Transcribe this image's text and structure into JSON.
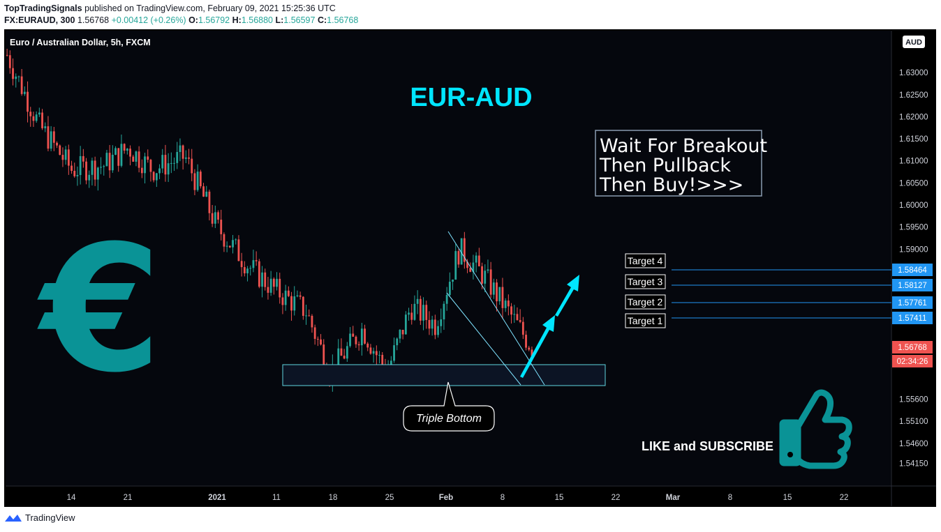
{
  "header": {
    "publisher": "TopTradingSignals",
    "published_text": " published on TradingView.com, February 09, 2021 15:25:36 UTC",
    "symbol": "FX:EURAUD, 300",
    "last": " 1.56768",
    "change": " +0.00412 (+0.26%)",
    "o_label": " O:",
    "o_val": "1.56792",
    "h_label": " H:",
    "h_val": "1.56880",
    "l_label": " L:",
    "l_val": "1.56597",
    "c_label": " C:",
    "c_val": "1.56768"
  },
  "chart": {
    "instrument_title": "Euro / Australian Dollar, 5h, FXCM",
    "currency": "AUD",
    "price_badge": "1.56768",
    "countdown": "02:34:26",
    "headline": "EUR-AUD",
    "note_lines": [
      "Wait For Breakout",
      "Then Pullback",
      "Then Buy!>>>"
    ],
    "triple_bottom_label": "Triple Bottom",
    "cta": "LIKE and SUBSCRIBE",
    "euro_symbol": "€",
    "targets": [
      {
        "label": "Target 4",
        "price": "1.58464"
      },
      {
        "label": "Target 3",
        "price": "1.58127"
      },
      {
        "label": "Target 2",
        "price": "1.57761"
      },
      {
        "label": "Target 1",
        "price": "1.57411"
      }
    ],
    "colors": {
      "bg": "#000000",
      "up": "#26a69a",
      "down": "#ef5350",
      "accent": "#00e5ff",
      "teal": "#0a9396",
      "target_line": "#2196f3"
    }
  },
  "chart_data": {
    "type": "candlestick",
    "title": "Euro / Australian Dollar, 5h, FXCM",
    "ylabel": "AUD",
    "ylim": [
      1.5365,
      1.6395
    ],
    "y_ticks": [
      "1.63000",
      "1.62500",
      "1.62000",
      "1.61500",
      "1.61000",
      "1.60500",
      "1.60000",
      "1.59500",
      "1.59000",
      "1.55600",
      "1.55100",
      "1.54600",
      "1.54150"
    ],
    "y_tick_values": [
      1.63,
      1.625,
      1.62,
      1.615,
      1.61,
      1.605,
      1.6,
      1.595,
      1.59,
      1.556,
      1.551,
      1.546,
      1.5415
    ],
    "x_ticks": [
      "14",
      "21",
      "2021",
      "11",
      "18",
      "25",
      "Feb",
      "8",
      "15",
      "22",
      "Mar",
      "8",
      "15",
      "22"
    ],
    "series": [
      {
        "date": "2020-12-06",
        "close": 1.634
      },
      {
        "date": "2020-12-10",
        "close": 1.618
      },
      {
        "date": "2020-12-14",
        "close": 1.608
      },
      {
        "date": "2020-12-18",
        "close": 1.609
      },
      {
        "date": "2020-12-21",
        "close": 1.613
      },
      {
        "date": "2020-12-24",
        "close": 1.608
      },
      {
        "date": "2020-12-28",
        "close": 1.611
      },
      {
        "date": "2021-01-01",
        "close": 1.595
      },
      {
        "date": "2021-01-05",
        "close": 1.586
      },
      {
        "date": "2021-01-08",
        "close": 1.581
      },
      {
        "date": "2021-01-12",
        "close": 1.576
      },
      {
        "date": "2021-01-15",
        "close": 1.562
      },
      {
        "date": "2021-01-19",
        "close": 1.572
      },
      {
        "date": "2021-01-22",
        "close": 1.562
      },
      {
        "date": "2021-01-25",
        "close": 1.577
      },
      {
        "date": "2021-01-28",
        "close": 1.573
      },
      {
        "date": "2021-01-31",
        "close": 1.59
      },
      {
        "date": "2021-02-03",
        "close": 1.584
      },
      {
        "date": "2021-02-06",
        "close": 1.576
      },
      {
        "date": "2021-02-09",
        "close": 1.5677
      }
    ]
  }
}
